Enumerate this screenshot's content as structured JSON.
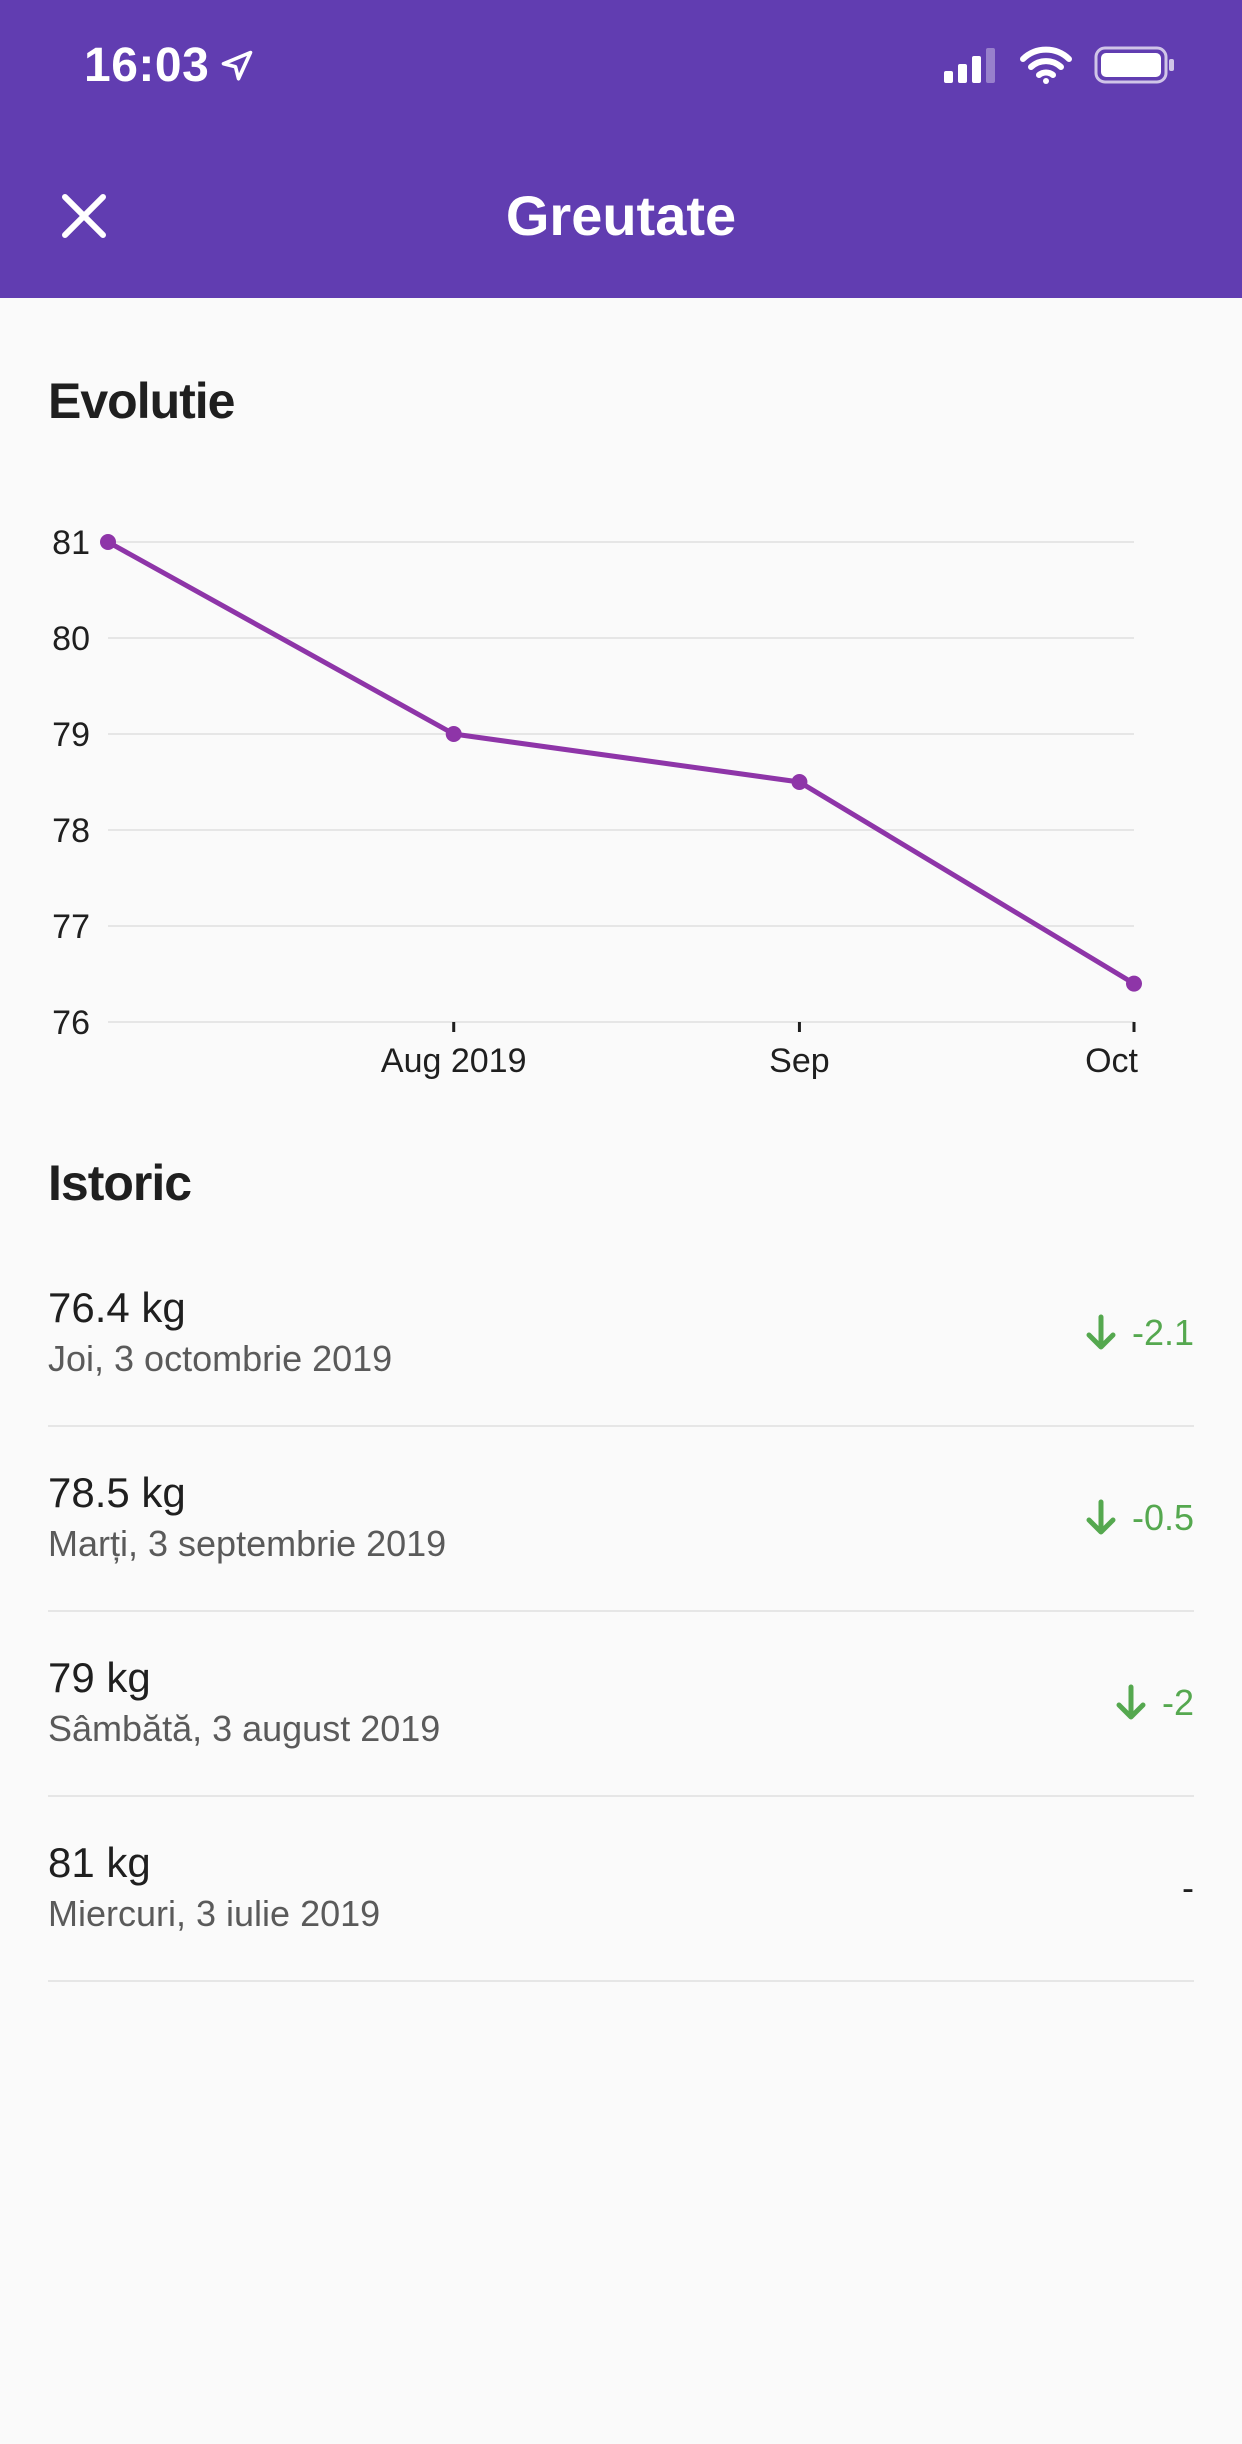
{
  "status_bar": {
    "time": "16:03"
  },
  "header": {
    "title": "Greutate"
  },
  "sections": {
    "evolution_title": "Evolutie",
    "history_title": "Istoric"
  },
  "chart_data": {
    "type": "line",
    "x": [
      "2019-07-03",
      "2019-08-03",
      "2019-09-03",
      "2019-10-03"
    ],
    "values": [
      81,
      79,
      78.5,
      76.4
    ],
    "ylim": [
      76,
      81
    ],
    "y_ticks": [
      "81",
      "80",
      "79",
      "78",
      "77",
      "76"
    ],
    "x_tick_labels": [
      "Aug 2019",
      "Sep",
      "Oct"
    ],
    "grid": true,
    "color": "#8e35a8"
  },
  "history": [
    {
      "weight": "76.4 kg",
      "date": "Joi, 3 octombrie 2019",
      "diff": "-2.1",
      "trend": "down"
    },
    {
      "weight": "78.5 kg",
      "date": "Marți, 3 septembrie 2019",
      "diff": "-0.5",
      "trend": "down"
    },
    {
      "weight": "79 kg",
      "date": "Sâmbătă, 3 august 2019",
      "diff": "-2",
      "trend": "down"
    },
    {
      "weight": "81 kg",
      "date": "Miercuri, 3 iulie 2019",
      "diff": "-",
      "trend": "none"
    }
  ],
  "colors": {
    "app_bar": "#613db1",
    "line": "#8e35a8",
    "down": "#55a84f"
  }
}
